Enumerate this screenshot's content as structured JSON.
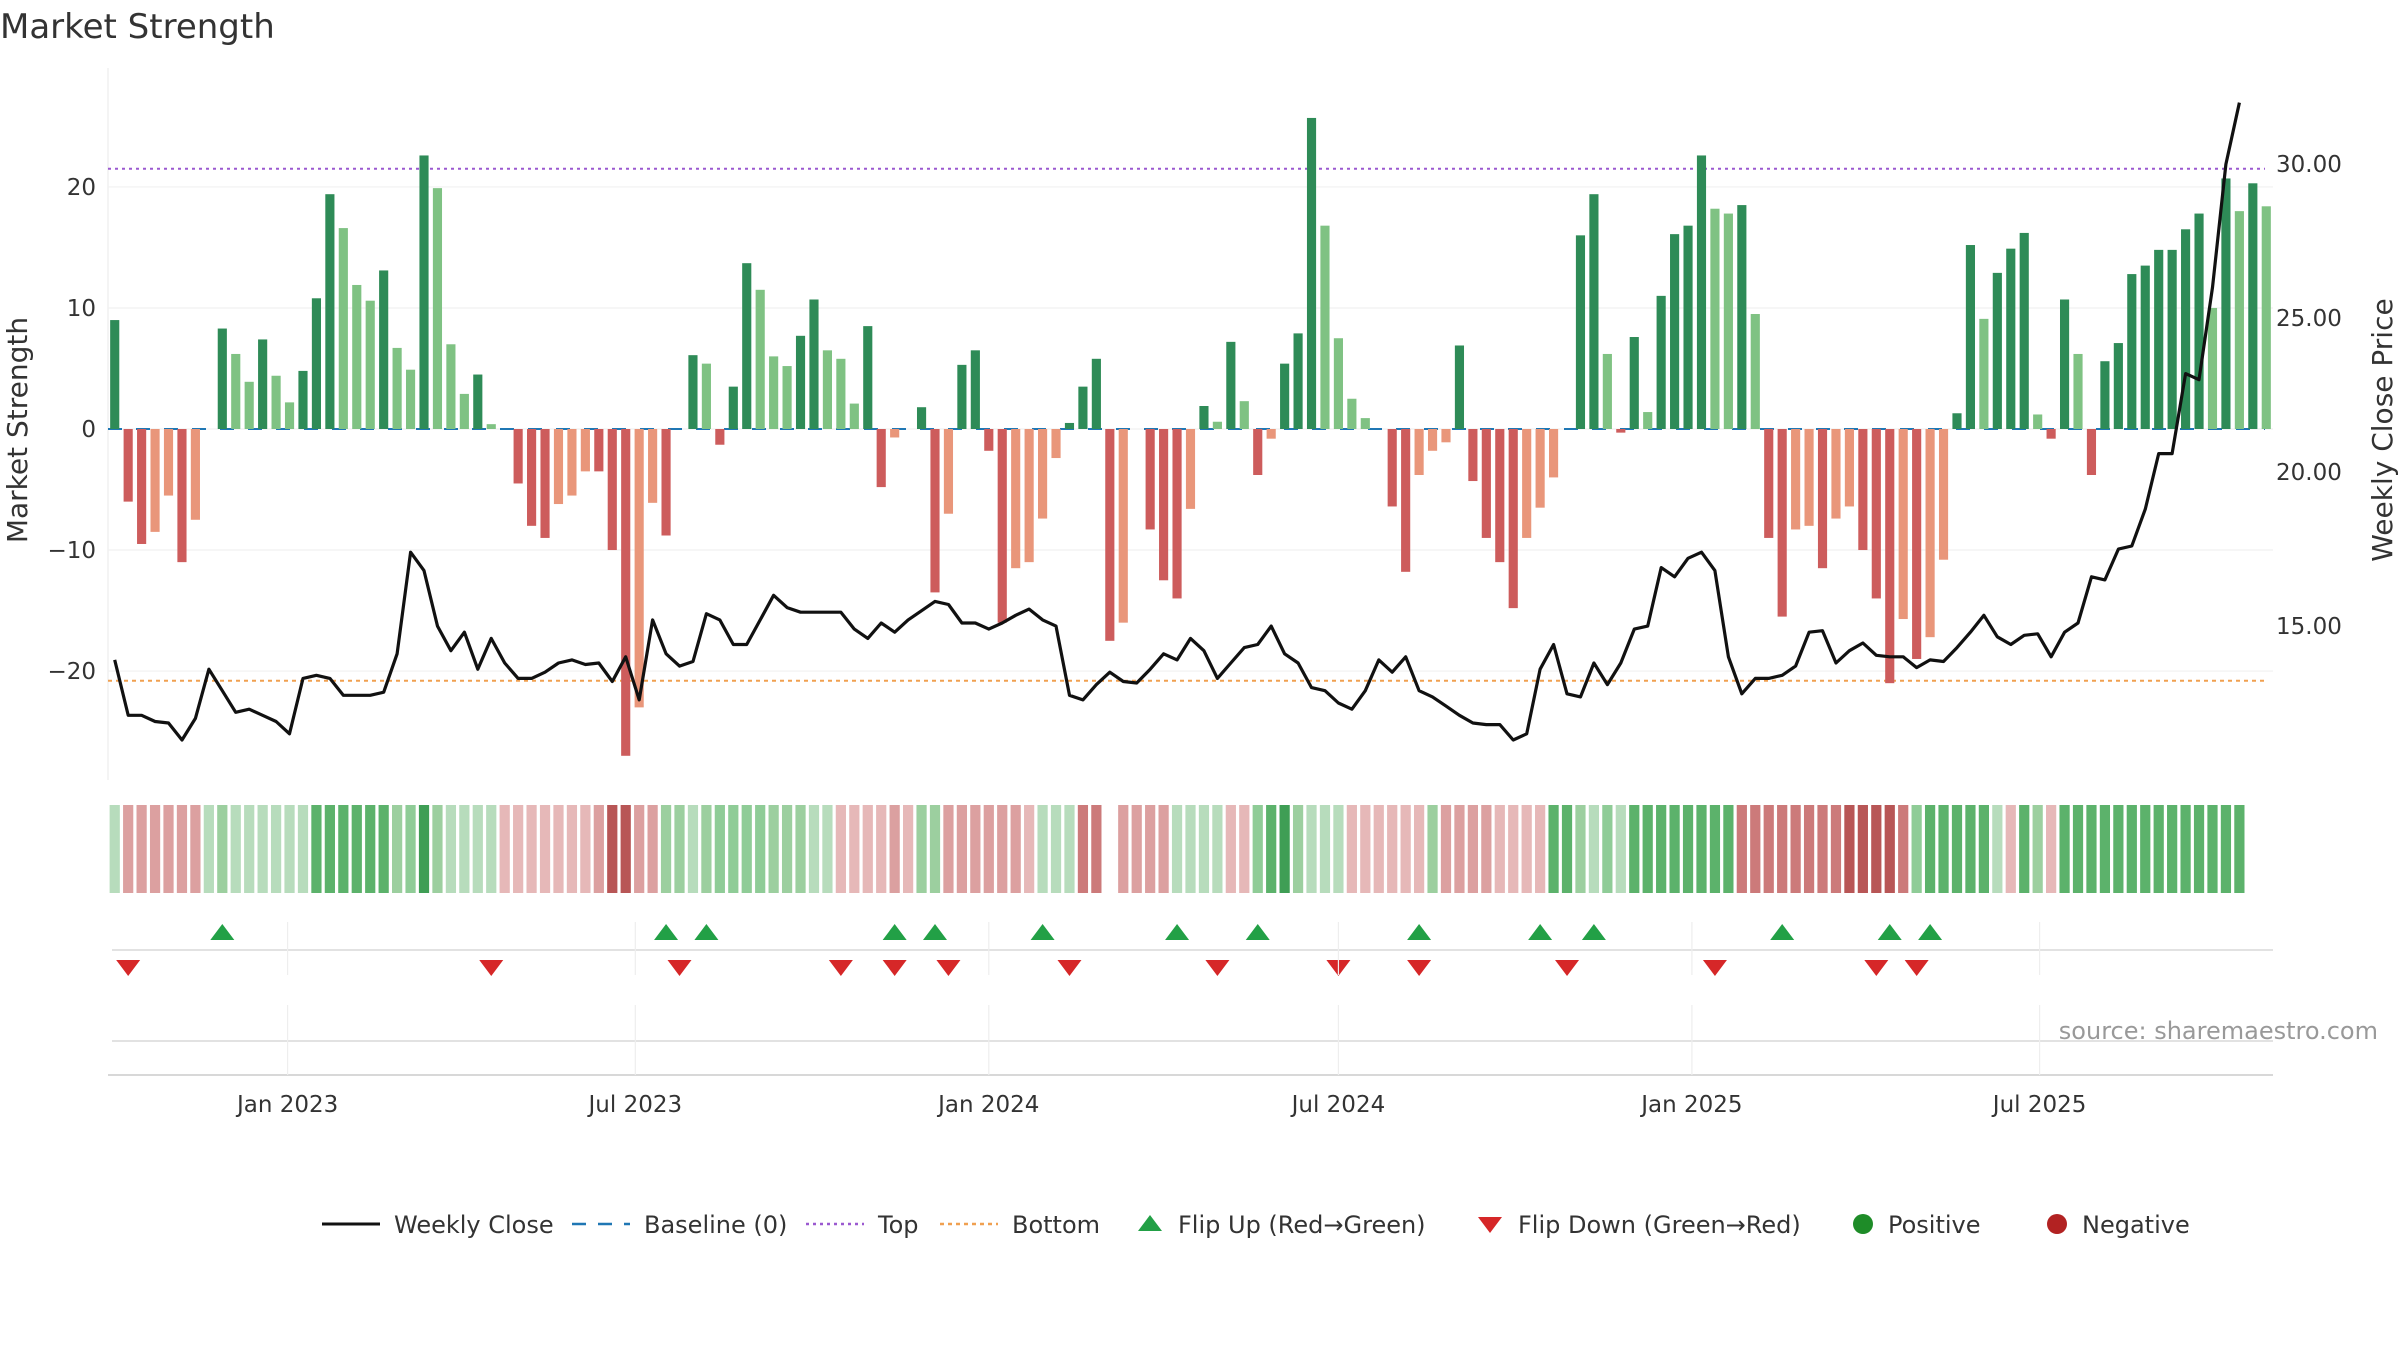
{
  "chart_data": {
    "type": "bar",
    "title": "Market Strength",
    "ylabel_left": "Market Strength",
    "ylabel_right": "Weekly Close Price",
    "source": "source: sharemaestro.com",
    "left_axis": {
      "ylim": [
        -29,
        29
      ],
      "ticks": [
        20,
        10,
        0,
        -10,
        -20
      ],
      "tick_labels": [
        "20",
        "10",
        "0",
        "−10",
        "−20"
      ]
    },
    "right_axis": {
      "ylim": [
        10.0,
        32.8
      ],
      "ticks": [
        30,
        25,
        20,
        15
      ],
      "tick_labels": [
        "30.00",
        "25.00",
        "20.00",
        "15.00"
      ]
    },
    "x_axis": {
      "start": "2022-10-03",
      "tick_dates": [
        "2023-01-01",
        "2023-07-01",
        "2024-01-01",
        "2024-07-01",
        "2025-01-01",
        "2025-07-01"
      ],
      "tick_labels": [
        "Jan 2023",
        "Jul 2023",
        "Jan 2024",
        "Jul 2024",
        "Jan 2025",
        "Jul 2025"
      ]
    },
    "reference_lines": {
      "top": 21.5,
      "bottom": -20.8,
      "baseline": 0
    },
    "colors": {
      "strong_pos": "#2e8b57",
      "weak_pos": "#7fc283",
      "strong_neg": "#cd5c5c",
      "weak_neg": "#e9967a",
      "close": "#111111",
      "top": "#9b59d0",
      "bottom": "#f0a050",
      "baseline": "#1f77b4",
      "flip_up": "#22a046",
      "flip_down": "#d62728",
      "positive": "#1e8c28",
      "negative": "#b22222"
    },
    "series": [
      {
        "name": "Market Strength",
        "values": [
          9,
          -6,
          -9.5,
          -8.5,
          -5.5,
          -11,
          -7.5,
          0,
          8.3,
          6.2,
          3.9,
          7.4,
          4.4,
          2.2,
          4.8,
          10.8,
          19.4,
          16.6,
          11.9,
          10.6,
          13.1,
          6.7,
          4.9,
          22.6,
          19.9,
          7,
          2.9,
          4.5,
          0.4,
          0,
          -4.5,
          -8,
          -9,
          -6.2,
          -5.5,
          -3.5,
          -3.5,
          -10,
          -27,
          -23,
          -6.1,
          -8.8,
          0,
          6.1,
          5.4,
          -1.3,
          3.5,
          13.7,
          11.5,
          6,
          5.2,
          7.7,
          10.7,
          6.5,
          5.8,
          2.1,
          8.5,
          -4.8,
          -0.7,
          0,
          1.8,
          -13.5,
          -7,
          5.3,
          6.5,
          -1.8,
          -16,
          -11.5,
          -11,
          -7.4,
          -2.4,
          0.5,
          3.5,
          5.8,
          -17.5,
          -16,
          0,
          -8.3,
          -12.5,
          -14,
          -6.6,
          1.9,
          0.6,
          7.2,
          2.3,
          -3.8,
          -0.8,
          5.4,
          7.9,
          25.7,
          16.8,
          7.5,
          2.5,
          0.9,
          0,
          -6.4,
          -11.8,
          -3.8,
          -1.8,
          -1.1,
          6.9,
          -4.3,
          -9,
          -11,
          -14.8,
          -9,
          -6.5,
          -4,
          0,
          16,
          19.4,
          6.2,
          -0.3,
          7.6,
          1.4,
          11,
          16.1,
          16.8,
          22.6,
          18.2,
          17.8,
          18.5,
          9.5,
          -9,
          -15.5,
          -8.3,
          -8,
          -11.5,
          -7.4,
          -6.4,
          -10,
          -14,
          -21,
          -15.7,
          -19,
          -17.2,
          -10.8,
          1.3,
          15.2,
          9.1,
          12.9,
          14.9,
          16.2,
          1.2,
          -0.8,
          10.7,
          6.2,
          -3.8,
          5.6,
          7.1,
          12.8,
          13.5,
          14.8,
          14.8,
          16.5,
          17.8,
          10,
          20.7,
          18,
          20.3,
          18.4
        ]
      },
      {
        "name": "Weekly Close",
        "values": [
          13.9,
          12.1,
          12.1,
          11.9,
          11.85,
          11.3,
          12,
          13.6,
          12.9,
          12.2,
          12.3,
          12.1,
          11.9,
          11.5,
          13.3,
          13.4,
          13.3,
          12.75,
          12.75,
          12.75,
          12.85,
          14.1,
          17.4,
          16.8,
          15,
          14.2,
          14.8,
          13.6,
          14.6,
          13.8,
          13.3,
          13.3,
          13.5,
          13.8,
          13.9,
          13.75,
          13.8,
          13.2,
          14,
          12.6,
          15.2,
          14.1,
          13.7,
          13.85,
          15.4,
          15.2,
          14.4,
          14.4,
          15.2,
          16,
          15.6,
          15.45,
          15.45,
          15.45,
          15.45,
          14.9,
          14.6,
          15.1,
          14.8,
          15.2,
          15.5,
          15.8,
          15.7,
          15.1,
          15.1,
          14.9,
          15.1,
          15.35,
          15.55,
          15.2,
          15.0,
          12.75,
          12.6,
          13.1,
          13.5,
          13.2,
          13.15,
          13.6,
          14.1,
          13.9,
          14.6,
          14.2,
          13.3,
          13.8,
          14.3,
          14.4,
          15.0,
          14.1,
          13.8,
          13.0,
          12.9,
          12.5,
          12.3,
          12.9,
          13.9,
          13.5,
          14.0,
          12.9,
          12.7,
          12.4,
          12.1,
          11.85,
          11.8,
          11.8,
          11.3,
          11.5,
          13.6,
          14.4,
          12.8,
          12.7,
          13.8,
          13.1,
          13.8,
          14.9,
          15.0,
          16.9,
          16.6,
          17.2,
          17.4,
          16.8,
          14.0,
          12.8,
          13.3,
          13.3,
          13.4,
          13.7,
          14.8,
          14.85,
          13.8,
          14.2,
          14.45,
          14.05,
          14.0,
          14.0,
          13.65,
          13.9,
          13.85,
          14.3,
          14.8,
          15.35,
          14.65,
          14.4,
          14.7,
          14.75,
          14.0,
          14.8,
          15.1,
          16.6,
          16.5,
          17.5,
          17.6,
          18.8,
          20.6,
          20.6,
          23.2,
          23.0,
          26.0,
          30.0,
          32.0
        ]
      }
    ],
    "flip_up_weeks": [
      8,
      41,
      44,
      58,
      61,
      69,
      79,
      85,
      97,
      106,
      110,
      124,
      132,
      135
    ],
    "flip_down_weeks": [
      1,
      28,
      42,
      54,
      58,
      62,
      71,
      82,
      91,
      97,
      108,
      119,
      131,
      134
    ],
    "strip": [
      {
        "c": "lg",
        "s": 1
      },
      {
        "c": "lr",
        "s": 2
      },
      {
        "c": "lr",
        "s": 2
      },
      {
        "c": "lr",
        "s": 2
      },
      {
        "c": "lr",
        "s": 2
      },
      {
        "c": "lr",
        "s": 2
      },
      {
        "c": "lr",
        "s": 2
      },
      {
        "c": "lg",
        "s": 1
      },
      {
        "c": "lg",
        "s": 2
      },
      {
        "c": "lg",
        "s": 1
      },
      {
        "c": "lg",
        "s": 1
      },
      {
        "c": "lg",
        "s": 1
      },
      {
        "c": "lg",
        "s": 1
      },
      {
        "c": "lg",
        "s": 1
      },
      {
        "c": "lg",
        "s": 1
      },
      {
        "c": "g",
        "s": 2
      },
      {
        "c": "g",
        "s": 2
      },
      {
        "c": "g",
        "s": 2
      },
      {
        "c": "g",
        "s": 2
      },
      {
        "c": "g",
        "s": 2
      },
      {
        "c": "g",
        "s": 2
      },
      {
        "c": "lg",
        "s": 2
      },
      {
        "c": "g",
        "s": 1
      },
      {
        "c": "g",
        "s": 3
      },
      {
        "c": "lg",
        "s": 2
      },
      {
        "c": "lg",
        "s": 1
      },
      {
        "c": "lg",
        "s": 1
      },
      {
        "c": "lg",
        "s": 1
      },
      {
        "c": "lg",
        "s": 1
      },
      {
        "c": "lr",
        "s": 1
      },
      {
        "c": "lr",
        "s": 1
      },
      {
        "c": "lr",
        "s": 1
      },
      {
        "c": "lr",
        "s": 1
      },
      {
        "c": "lr",
        "s": 1
      },
      {
        "c": "lr",
        "s": 1
      },
      {
        "c": "lr",
        "s": 1
      },
      {
        "c": "lr",
        "s": 2
      },
      {
        "c": "r",
        "s": 3
      },
      {
        "c": "r",
        "s": 3
      },
      {
        "c": "lr",
        "s": 2
      },
      {
        "c": "lr",
        "s": 2
      },
      {
        "c": "lg",
        "s": 2
      },
      {
        "c": "lg",
        "s": 2
      },
      {
        "c": "lg",
        "s": 1
      },
      {
        "c": "lg",
        "s": 2
      },
      {
        "c": "g",
        "s": 1
      },
      {
        "c": "g",
        "s": 1
      },
      {
        "c": "g",
        "s": 1
      },
      {
        "c": "g",
        "s": 1
      },
      {
        "c": "lg",
        "s": 2
      },
      {
        "c": "lg",
        "s": 2
      },
      {
        "c": "lg",
        "s": 2
      },
      {
        "c": "lg",
        "s": 1
      },
      {
        "c": "lg",
        "s": 1
      },
      {
        "c": "lr",
        "s": 1
      },
      {
        "c": "lr",
        "s": 1
      },
      {
        "c": "lr",
        "s": 1
      },
      {
        "c": "lr",
        "s": 1
      },
      {
        "c": "r",
        "s": 1
      },
      {
        "c": "lr",
        "s": 1
      },
      {
        "c": "lg",
        "s": 2
      },
      {
        "c": "lg",
        "s": 2
      },
      {
        "c": "lr",
        "s": 2
      },
      {
        "c": "lr",
        "s": 2
      },
      {
        "c": "lr",
        "s": 2
      },
      {
        "c": "lr",
        "s": 2
      },
      {
        "c": "lr",
        "s": 2
      },
      {
        "c": "lr",
        "s": 2
      },
      {
        "c": "lr",
        "s": 1
      },
      {
        "c": "lg",
        "s": 1
      },
      {
        "c": "lg",
        "s": 1
      },
      {
        "c": "lg",
        "s": 1
      },
      {
        "c": "r",
        "s": 2
      },
      {
        "c": "r",
        "s": 2
      },
      {
        "c": "w",
        "s": 0
      },
      {
        "c": "lr",
        "s": 2
      },
      {
        "c": "lr",
        "s": 2
      },
      {
        "c": "lr",
        "s": 2
      },
      {
        "c": "lr",
        "s": 2
      },
      {
        "c": "lg",
        "s": 1
      },
      {
        "c": "lg",
        "s": 1
      },
      {
        "c": "lg",
        "s": 1
      },
      {
        "c": "lg",
        "s": 1
      },
      {
        "c": "lr",
        "s": 1
      },
      {
        "c": "lr",
        "s": 1
      },
      {
        "c": "g",
        "s": 1
      },
      {
        "c": "g",
        "s": 2
      },
      {
        "c": "g",
        "s": 3
      },
      {
        "c": "lg",
        "s": 2
      },
      {
        "c": "lg",
        "s": 1
      },
      {
        "c": "lg",
        "s": 1
      },
      {
        "c": "lg",
        "s": 1
      },
      {
        "c": "lr",
        "s": 1
      },
      {
        "c": "lr",
        "s": 1
      },
      {
        "c": "lr",
        "s": 1
      },
      {
        "c": "lr",
        "s": 1
      },
      {
        "c": "lr",
        "s": 1
      },
      {
        "c": "lr",
        "s": 1
      },
      {
        "c": "lg",
        "s": 2
      },
      {
        "c": "lr",
        "s": 2
      },
      {
        "c": "lr",
        "s": 2
      },
      {
        "c": "lr",
        "s": 2
      },
      {
        "c": "lr",
        "s": 2
      },
      {
        "c": "lr",
        "s": 1
      },
      {
        "c": "lr",
        "s": 1
      },
      {
        "c": "lr",
        "s": 1
      },
      {
        "c": "lr",
        "s": 1
      },
      {
        "c": "g",
        "s": 2
      },
      {
        "c": "g",
        "s": 2
      },
      {
        "c": "lg",
        "s": 2
      },
      {
        "c": "lg",
        "s": 1
      },
      {
        "c": "g",
        "s": 1
      },
      {
        "c": "lg",
        "s": 1
      },
      {
        "c": "g",
        "s": 2
      },
      {
        "c": "g",
        "s": 2
      },
      {
        "c": "g",
        "s": 2
      },
      {
        "c": "g",
        "s": 2
      },
      {
        "c": "g",
        "s": 2
      },
      {
        "c": "g",
        "s": 2
      },
      {
        "c": "g",
        "s": 2
      },
      {
        "c": "g",
        "s": 2
      },
      {
        "c": "r",
        "s": 2
      },
      {
        "c": "r",
        "s": 2
      },
      {
        "c": "r",
        "s": 2
      },
      {
        "c": "r",
        "s": 2
      },
      {
        "c": "r",
        "s": 2
      },
      {
        "c": "r",
        "s": 2
      },
      {
        "c": "r",
        "s": 2
      },
      {
        "c": "r",
        "s": 2
      },
      {
        "c": "r",
        "s": 3
      },
      {
        "c": "r",
        "s": 3
      },
      {
        "c": "r",
        "s": 3
      },
      {
        "c": "r",
        "s": 3
      },
      {
        "c": "r",
        "s": 2
      },
      {
        "c": "g",
        "s": 1
      },
      {
        "c": "g",
        "s": 2
      },
      {
        "c": "g",
        "s": 2
      },
      {
        "c": "g",
        "s": 2
      },
      {
        "c": "g",
        "s": 2
      },
      {
        "c": "g",
        "s": 2
      },
      {
        "c": "lg",
        "s": 1
      },
      {
        "c": "lr",
        "s": 1
      },
      {
        "c": "g",
        "s": 2
      },
      {
        "c": "lg",
        "s": 2
      },
      {
        "c": "lr",
        "s": 1
      },
      {
        "c": "g",
        "s": 2
      },
      {
        "c": "g",
        "s": 2
      },
      {
        "c": "g",
        "s": 2
      },
      {
        "c": "g",
        "s": 2
      },
      {
        "c": "g",
        "s": 2
      },
      {
        "c": "g",
        "s": 2
      },
      {
        "c": "g",
        "s": 2
      },
      {
        "c": "g",
        "s": 2
      },
      {
        "c": "g",
        "s": 2
      },
      {
        "c": "g",
        "s": 2
      },
      {
        "c": "g",
        "s": 2
      },
      {
        "c": "g",
        "s": 2
      },
      {
        "c": "g",
        "s": 2
      },
      {
        "c": "g",
        "s": 2
      }
    ],
    "legend": [
      {
        "label": "Weekly Close",
        "kind": "line-solid"
      },
      {
        "label": "Baseline (0)",
        "kind": "line-dash"
      },
      {
        "label": "Top",
        "kind": "line-dot-top"
      },
      {
        "label": "Bottom",
        "kind": "line-dot-bottom"
      },
      {
        "label": "Flip Up (Red→Green)",
        "kind": "tri-up"
      },
      {
        "label": "Flip Down (Green→Red)",
        "kind": "tri-down"
      },
      {
        "label": "Positive",
        "kind": "dot-pos"
      },
      {
        "label": "Negative",
        "kind": "dot-neg"
      }
    ]
  }
}
